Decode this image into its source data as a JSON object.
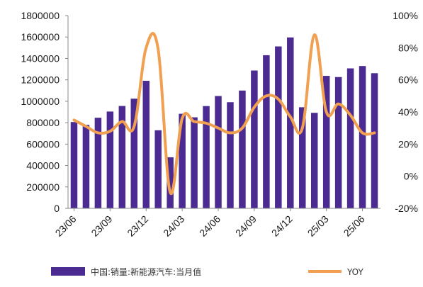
{
  "chart_data": {
    "type": "bar+line",
    "categories": [
      "23/06",
      "23/07",
      "23/08",
      "23/09",
      "23/10",
      "23/11",
      "23/12",
      "24/01",
      "24/02",
      "24/03",
      "24/04",
      "24/05",
      "24/06",
      "24/07",
      "24/08",
      "24/09",
      "24/10",
      "24/11",
      "24/12",
      "25/01",
      "25/02",
      "25/03",
      "25/04",
      "25/05",
      "25/06",
      "25/07"
    ],
    "x_tick_labels": [
      "23/06",
      "23/09",
      "23/12",
      "24/03",
      "24/06",
      "24/09",
      "24/12",
      "25/03",
      "25/06"
    ],
    "series": [
      {
        "name": "中国:销量:新能源汽车:当月值",
        "type": "bar",
        "axis": "left",
        "color": "#4b2a91",
        "values": [
          806000,
          780000,
          846000,
          904000,
          956000,
          1024000,
          1191000,
          729000,
          477000,
          883000,
          850000,
          955000,
          1049000,
          991000,
          1100000,
          1287000,
          1430000,
          1512000,
          1596000,
          944000,
          892000,
          1237000,
          1226000,
          1307000,
          1329000,
          1262000
        ]
      },
      {
        "name": "YOY",
        "type": "line",
        "axis": "right",
        "color": "#f0a050",
        "values": [
          0.35,
          0.31,
          0.27,
          0.28,
          0.34,
          0.31,
          0.8,
          0.79,
          -0.1,
          0.36,
          0.34,
          0.33,
          0.3,
          0.27,
          0.3,
          0.43,
          0.5,
          0.48,
          0.37,
          0.3,
          0.88,
          0.4,
          0.45,
          0.38,
          0.27,
          0.27
        ]
      }
    ],
    "y_left": {
      "min": 0,
      "max": 1800000,
      "ticks": [
        "0",
        "200000",
        "400000",
        "600000",
        "800000",
        "1000000",
        "1200000",
        "1400000",
        "1600000",
        "1800000"
      ]
    },
    "y_right": {
      "min": -0.2,
      "max": 1.0,
      "ticks": [
        "-20%",
        "0%",
        "20%",
        "40%",
        "60%",
        "80%",
        "100%"
      ]
    },
    "grid": false,
    "legend": {
      "placement": "bottom",
      "bar_label": "中国:销量:新能源汽车:当月值",
      "line_label": "YOY"
    }
  }
}
